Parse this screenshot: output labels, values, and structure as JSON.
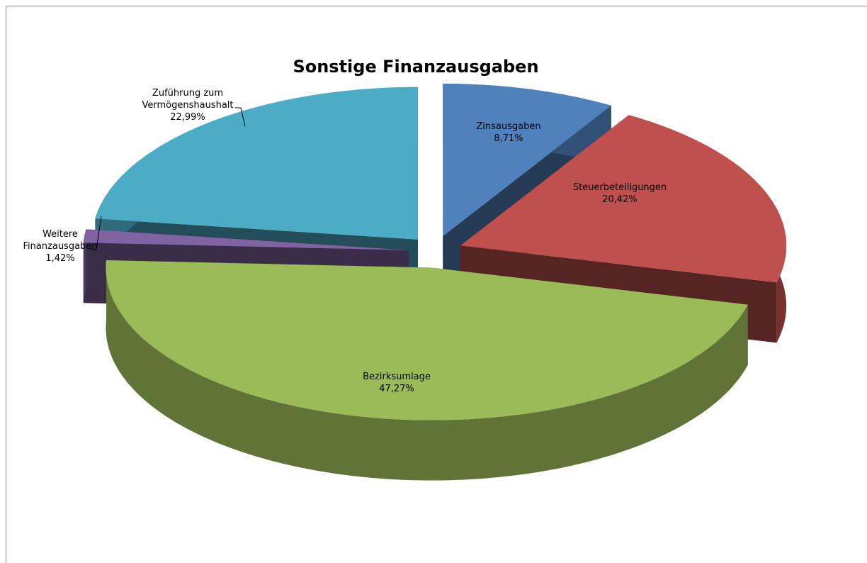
{
  "chart_data": {
    "type": "pie3d",
    "title": "Sonstige Finanzausgaben",
    "categories": [
      "Zinsausgaben",
      "Steuerbeteiligungen",
      "Bezirksumlage",
      "Weitere Finanzausgaben",
      "Zuführung zum Vermögenshaushalt"
    ],
    "values": [
      8.71,
      20.42,
      47.27,
      1.42,
      22.99
    ],
    "value_labels": [
      "8,71%",
      "20,42%",
      "47,27%",
      "1,42%",
      "22,99%"
    ],
    "colors": [
      "#4f81bd",
      "#c0504d",
      "#9bbb59",
      "#8064a2",
      "#4bacc6"
    ]
  }
}
